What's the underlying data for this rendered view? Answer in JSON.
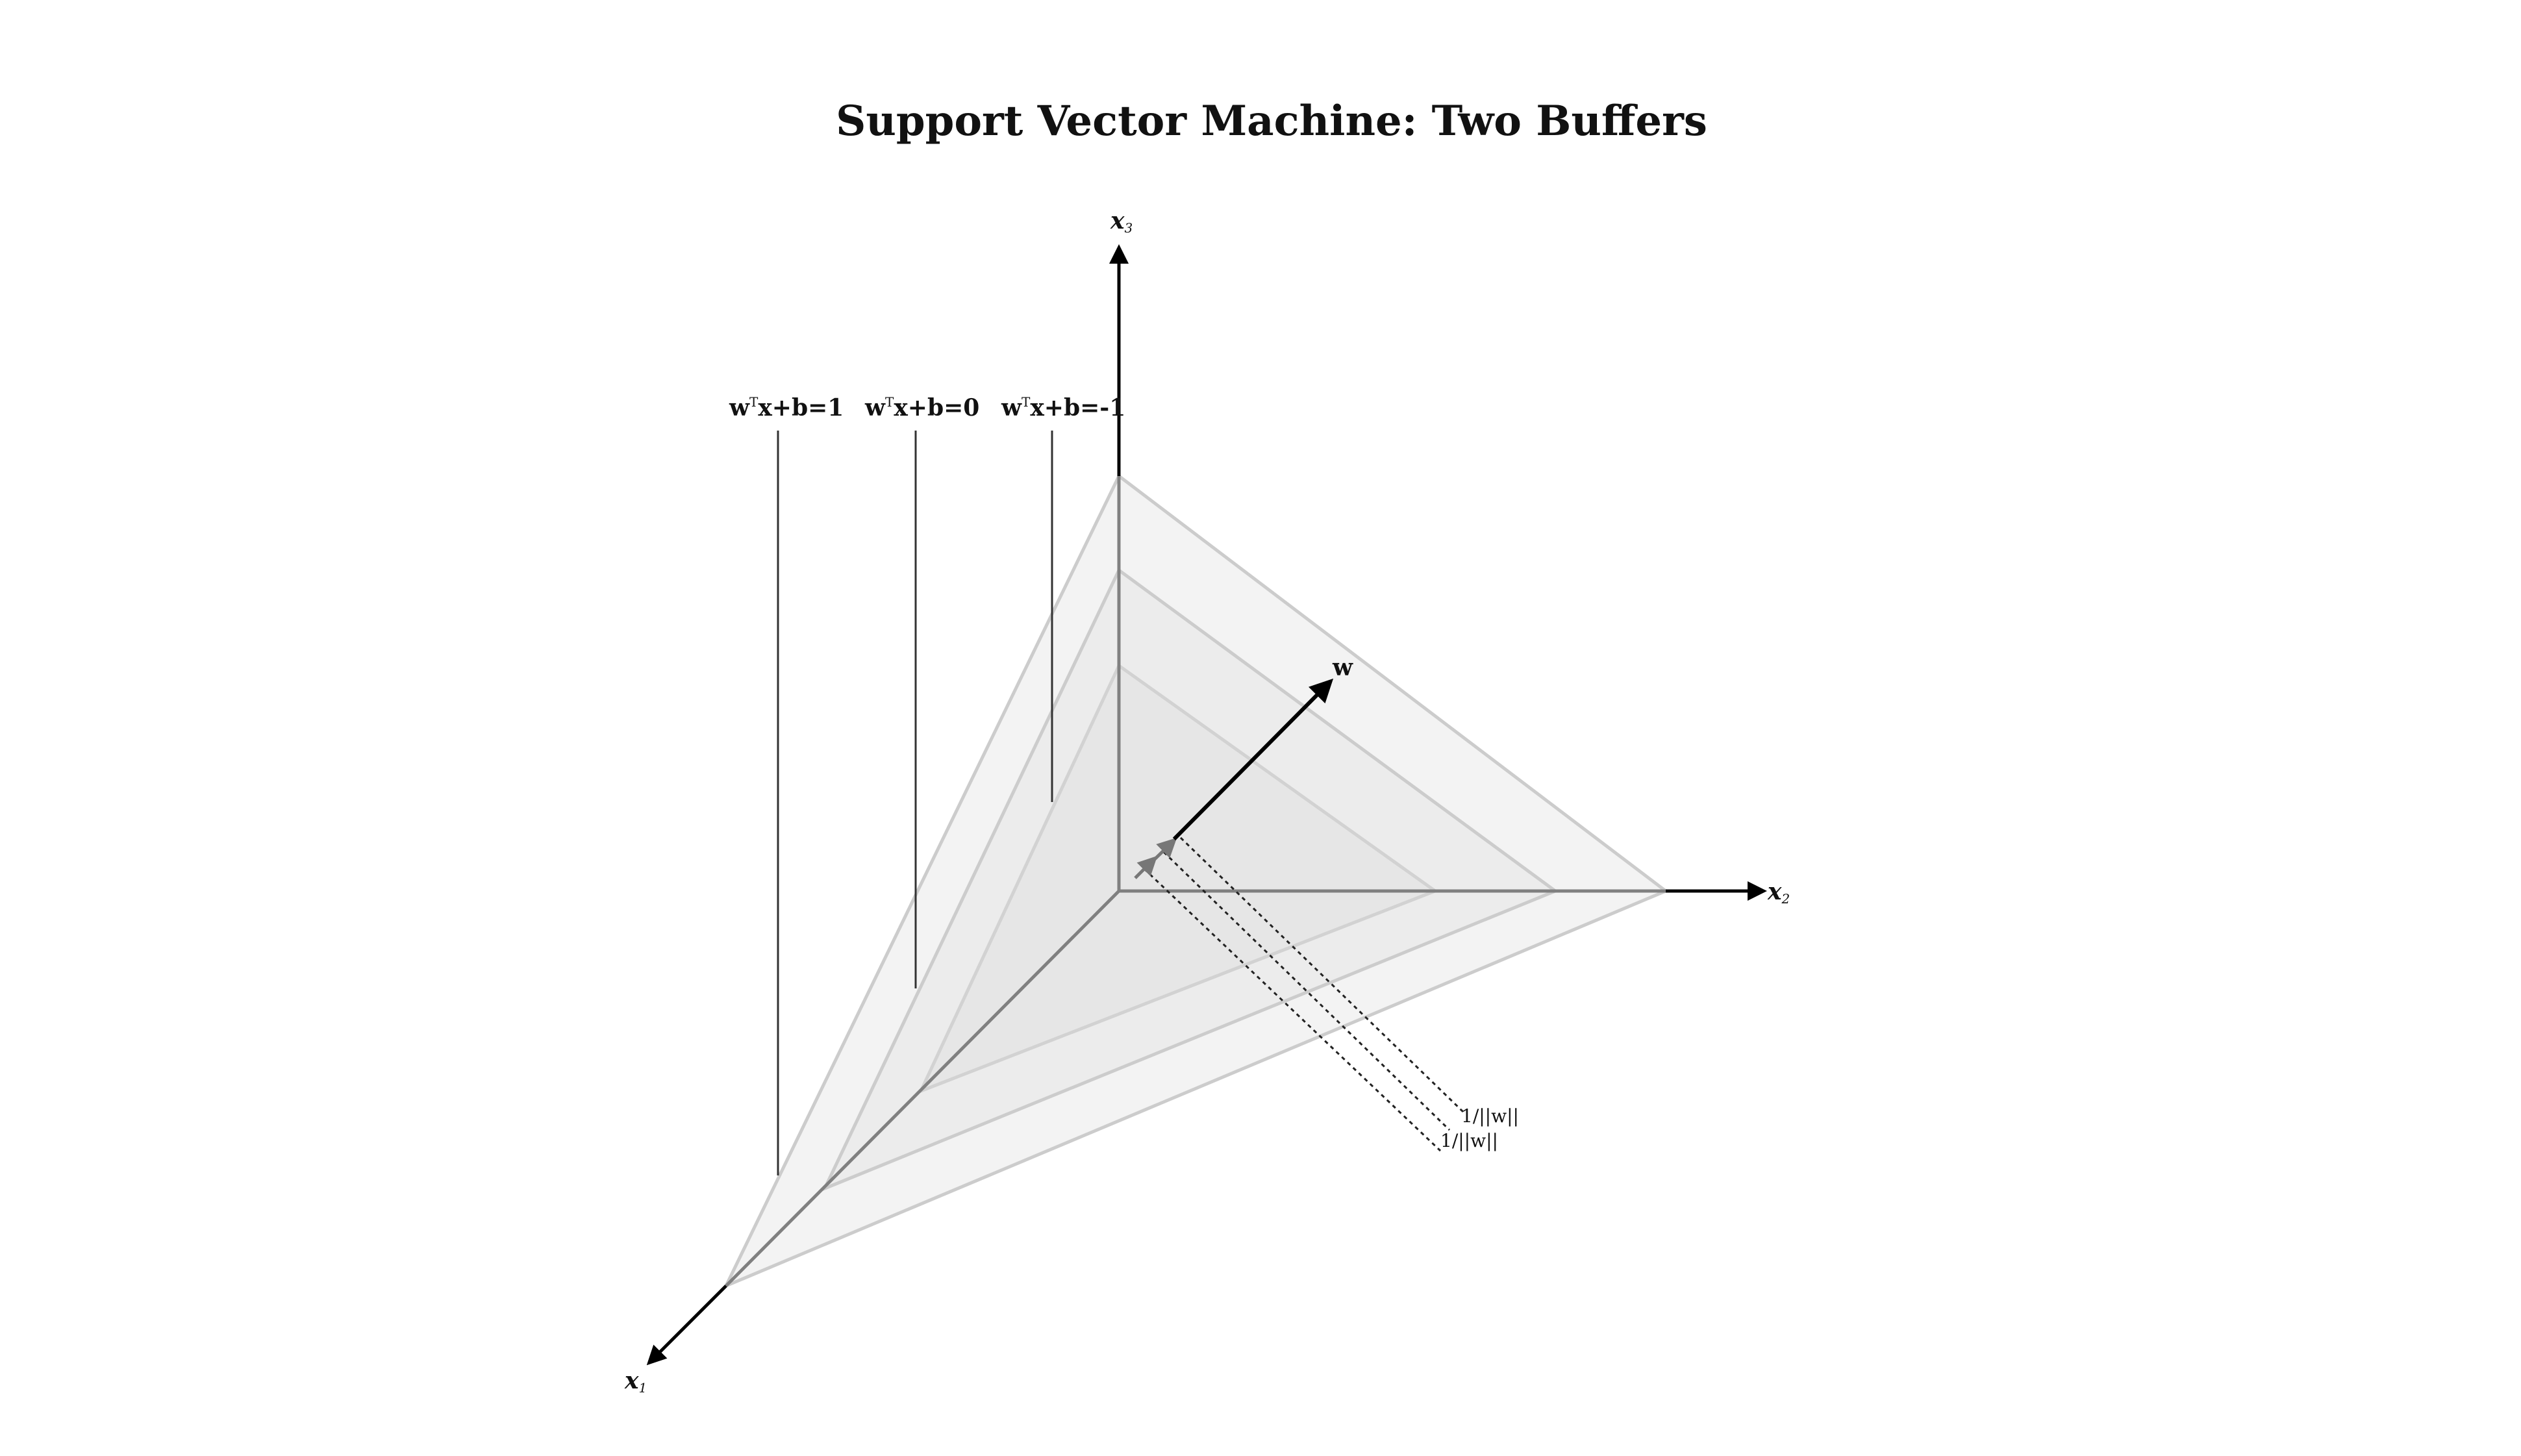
{
  "title": "Support Vector Machine: Two Buffers",
  "axes": [
    {
      "name": "x",
      "subscript": "1"
    },
    {
      "name": "x",
      "subscript": "2"
    },
    {
      "name": "x",
      "subscript": "3"
    }
  ],
  "planes": [
    {
      "equation_prefix": "w",
      "superscript": "T",
      "equation_suffix": "x+b=1"
    },
    {
      "equation_prefix": "w",
      "superscript": "T",
      "equation_suffix": "x+b=0"
    },
    {
      "equation_prefix": "w",
      "superscript": "T",
      "equation_suffix": "x+b=-1"
    }
  ],
  "normal_vector": {
    "label": "w"
  },
  "margins": [
    {
      "label": "1/||w||"
    },
    {
      "label": "1/||w||"
    }
  ],
  "colors": {
    "plane_fill_outer": "#f3f3f3",
    "plane_fill_middle": "#ececec",
    "plane_fill_inner": "#e6e6e6",
    "plane_edge": "#cccccc",
    "axis": "#000000",
    "axis_inner": "#808080",
    "leader": "#333333"
  }
}
